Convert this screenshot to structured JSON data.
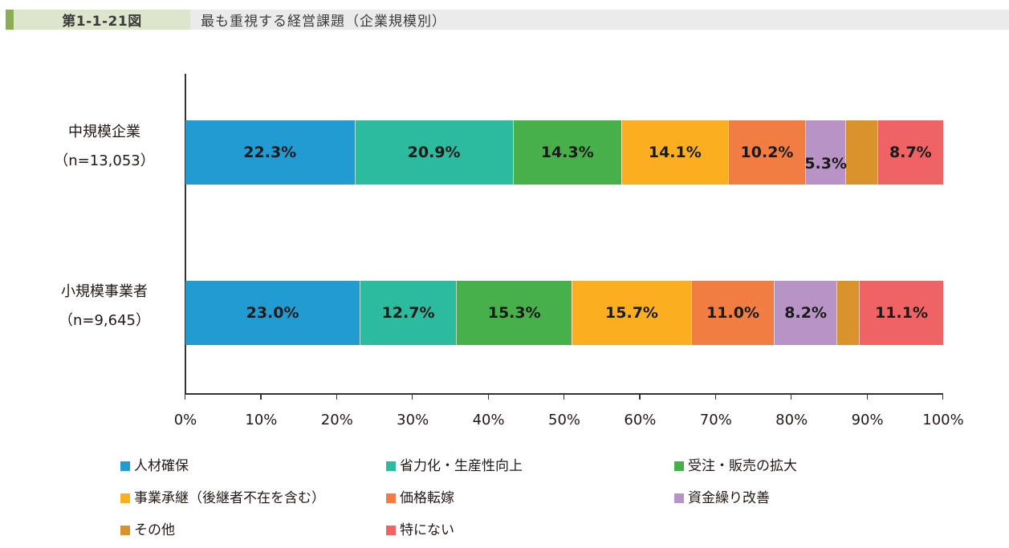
{
  "header": {
    "figure_number": "第1-1-21図",
    "title": "最も重視する経営課題（企業規模別）",
    "accent_color": "#8cac5a"
  },
  "chart_data": {
    "type": "bar",
    "orientation": "horizontal",
    "stacked": true,
    "normalized_percent": true,
    "title": "最も重視する経営課題（企業規模別）",
    "xlabel": "",
    "ylabel": "",
    "xlim": [
      0,
      100
    ],
    "x_ticks": [
      "0%",
      "10%",
      "20%",
      "30%",
      "40%",
      "50%",
      "60%",
      "70%",
      "80%",
      "90%",
      "100%"
    ],
    "grid": false,
    "legend_position": "bottom",
    "categories": [
      {
        "name": "中規模企業",
        "n": "（n=13,053）"
      },
      {
        "name": "小規模事業者",
        "n": "（n=9,645）"
      }
    ],
    "series": [
      {
        "name": "人材確保",
        "color": "#229bd3",
        "values": [
          22.3,
          23.0
        ],
        "labels": [
          "22.3%",
          "23.0%"
        ]
      },
      {
        "name": "省力化・生産性向上",
        "color": "#2dbba0",
        "values": [
          20.9,
          12.7
        ],
        "labels": [
          "20.9%",
          "12.7%"
        ]
      },
      {
        "name": "受注・販売の拡大",
        "color": "#47b04b",
        "values": [
          14.3,
          15.3
        ],
        "labels": [
          "14.3%",
          "15.3%"
        ]
      },
      {
        "name": "事業承継（後継者不在を含む）",
        "color": "#faae20",
        "values": [
          14.1,
          15.7
        ],
        "labels": [
          "14.1%",
          "15.7%"
        ]
      },
      {
        "name": "価格転嫁",
        "color": "#f17d42",
        "values": [
          10.2,
          11.0
        ],
        "labels": [
          "10.2%",
          "11.0%"
        ]
      },
      {
        "name": "資金繰り改善",
        "color": "#b893c5",
        "values": [
          5.3,
          8.2
        ],
        "labels": [
          "5.3%",
          "8.2%"
        ]
      },
      {
        "name": "その他",
        "color": "#da922d",
        "values": [
          4.2,
          3.0
        ],
        "labels": [
          "",
          ""
        ]
      },
      {
        "name": "特にない",
        "color": "#ef6364",
        "values": [
          8.7,
          11.1
        ],
        "labels": [
          "8.7%",
          "11.1%"
        ]
      }
    ]
  }
}
